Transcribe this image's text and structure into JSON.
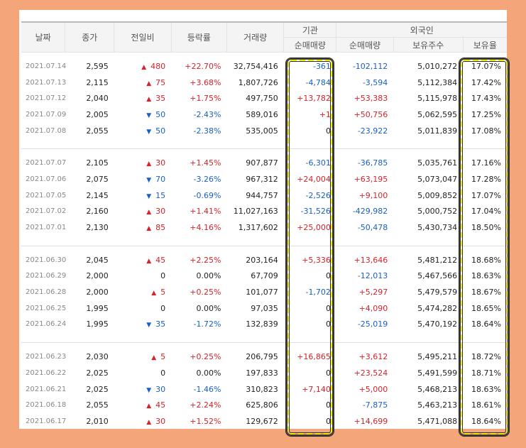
{
  "headers": {
    "date": "날짜",
    "close": "종가",
    "change": "전일비",
    "rate": "등락률",
    "volume": "거래량",
    "institution": "기관",
    "foreign": "외국인",
    "inst_net": "순매매량",
    "foreign_net": "순매매량",
    "foreign_shares": "보유주수",
    "foreign_ratio": "보유율"
  },
  "colors": {
    "up": "#d6232a",
    "down": "#1960c4",
    "highlight": "#f5ef00"
  },
  "groups": [
    [
      {
        "date": "2021.07.14",
        "close": "2,595",
        "dir": "up",
        "change": "480",
        "rate": "+22.70%",
        "volume": "32,754,416",
        "inst": "-361",
        "fnet": "-102,112",
        "shares": "5,010,272",
        "ratio": "17.07%"
      },
      {
        "date": "2021.07.13",
        "close": "2,115",
        "dir": "up",
        "change": "75",
        "rate": "+3.68%",
        "volume": "1,807,726",
        "inst": "-4,784",
        "fnet": "-3,594",
        "shares": "5,112,384",
        "ratio": "17.42%"
      },
      {
        "date": "2021.07.12",
        "close": "2,040",
        "dir": "up",
        "change": "35",
        "rate": "+1.75%",
        "volume": "497,750",
        "inst": "+13,782",
        "fnet": "+53,383",
        "shares": "5,115,978",
        "ratio": "17.43%"
      },
      {
        "date": "2021.07.09",
        "close": "2,005",
        "dir": "down",
        "change": "50",
        "rate": "-2.43%",
        "volume": "589,016",
        "inst": "+1",
        "fnet": "+50,756",
        "shares": "5,062,595",
        "ratio": "17.25%"
      },
      {
        "date": "2021.07.08",
        "close": "2,055",
        "dir": "down",
        "change": "50",
        "rate": "-2.38%",
        "volume": "535,005",
        "inst": "0",
        "fnet": "-23,922",
        "shares": "5,011,839",
        "ratio": "17.08%"
      }
    ],
    [
      {
        "date": "2021.07.07",
        "close": "2,105",
        "dir": "up",
        "change": "30",
        "rate": "+1.45%",
        "volume": "907,877",
        "inst": "-6,301",
        "fnet": "-36,785",
        "shares": "5,035,761",
        "ratio": "17.16%"
      },
      {
        "date": "2021.07.06",
        "close": "2,075",
        "dir": "down",
        "change": "70",
        "rate": "-3.26%",
        "volume": "967,312",
        "inst": "+24,004",
        "fnet": "+63,195",
        "shares": "5,073,047",
        "ratio": "17.28%"
      },
      {
        "date": "2021.07.05",
        "close": "2,145",
        "dir": "down",
        "change": "15",
        "rate": "-0.69%",
        "volume": "944,757",
        "inst": "-2,526",
        "fnet": "+9,100",
        "shares": "5,009,852",
        "ratio": "17.07%"
      },
      {
        "date": "2021.07.02",
        "close": "2,160",
        "dir": "up",
        "change": "30",
        "rate": "+1.41%",
        "volume": "11,027,163",
        "inst": "-31,526",
        "fnet": "-429,982",
        "shares": "5,000,752",
        "ratio": "17.04%"
      },
      {
        "date": "2021.07.01",
        "close": "2,130",
        "dir": "up",
        "change": "85",
        "rate": "+4.16%",
        "volume": "1,317,602",
        "inst": "+25,000",
        "fnet": "-50,478",
        "shares": "5,430,734",
        "ratio": "18.50%"
      }
    ],
    [
      {
        "date": "2021.06.30",
        "close": "2,045",
        "dir": "up",
        "change": "45",
        "rate": "+2.25%",
        "volume": "203,164",
        "inst": "+5,336",
        "fnet": "+13,646",
        "shares": "5,481,212",
        "ratio": "18.68%"
      },
      {
        "date": "2021.06.29",
        "close": "2,000",
        "dir": "none",
        "change": "0",
        "rate": "0.00%",
        "volume": "67,709",
        "inst": "0",
        "fnet": "-12,013",
        "shares": "5,467,566",
        "ratio": "18.63%"
      },
      {
        "date": "2021.06.28",
        "close": "2,000",
        "dir": "up",
        "change": "5",
        "rate": "+0.25%",
        "volume": "101,077",
        "inst": "-1,702",
        "fnet": "+5,297",
        "shares": "5,479,579",
        "ratio": "18.67%"
      },
      {
        "date": "2021.06.25",
        "close": "1,995",
        "dir": "none",
        "change": "0",
        "rate": "0.00%",
        "volume": "97,035",
        "inst": "0",
        "fnet": "+4,090",
        "shares": "5,474,282",
        "ratio": "18.65%"
      },
      {
        "date": "2021.06.24",
        "close": "1,995",
        "dir": "down",
        "change": "35",
        "rate": "-1.72%",
        "volume": "132,839",
        "inst": "0",
        "fnet": "-25,019",
        "shares": "5,470,192",
        "ratio": "18.64%"
      }
    ],
    [
      {
        "date": "2021.06.23",
        "close": "2,030",
        "dir": "up",
        "change": "5",
        "rate": "+0.25%",
        "volume": "206,795",
        "inst": "+16,865",
        "fnet": "+3,612",
        "shares": "5,495,211",
        "ratio": "18.72%"
      },
      {
        "date": "2021.06.22",
        "close": "2,025",
        "dir": "none",
        "change": "0",
        "rate": "0.00%",
        "volume": "197,833",
        "inst": "0",
        "fnet": "+23,524",
        "shares": "5,491,599",
        "ratio": "18.71%"
      },
      {
        "date": "2021.06.21",
        "close": "2,025",
        "dir": "down",
        "change": "30",
        "rate": "-1.46%",
        "volume": "310,823",
        "inst": "+7,140",
        "fnet": "+5,000",
        "shares": "5,468,213",
        "ratio": "18.63%"
      },
      {
        "date": "2021.06.18",
        "close": "2,055",
        "dir": "up",
        "change": "45",
        "rate": "+2.24%",
        "volume": "625,806",
        "inst": "0",
        "fnet": "-7,875",
        "shares": "5,463,213",
        "ratio": "18.61%"
      },
      {
        "date": "2021.06.17",
        "close": "2,010",
        "dir": "up",
        "change": "30",
        "rate": "+1.52%",
        "volume": "129,672",
        "inst": "0",
        "fnet": "+14,699",
        "shares": "5,471,088",
        "ratio": "18.64%"
      }
    ]
  ]
}
